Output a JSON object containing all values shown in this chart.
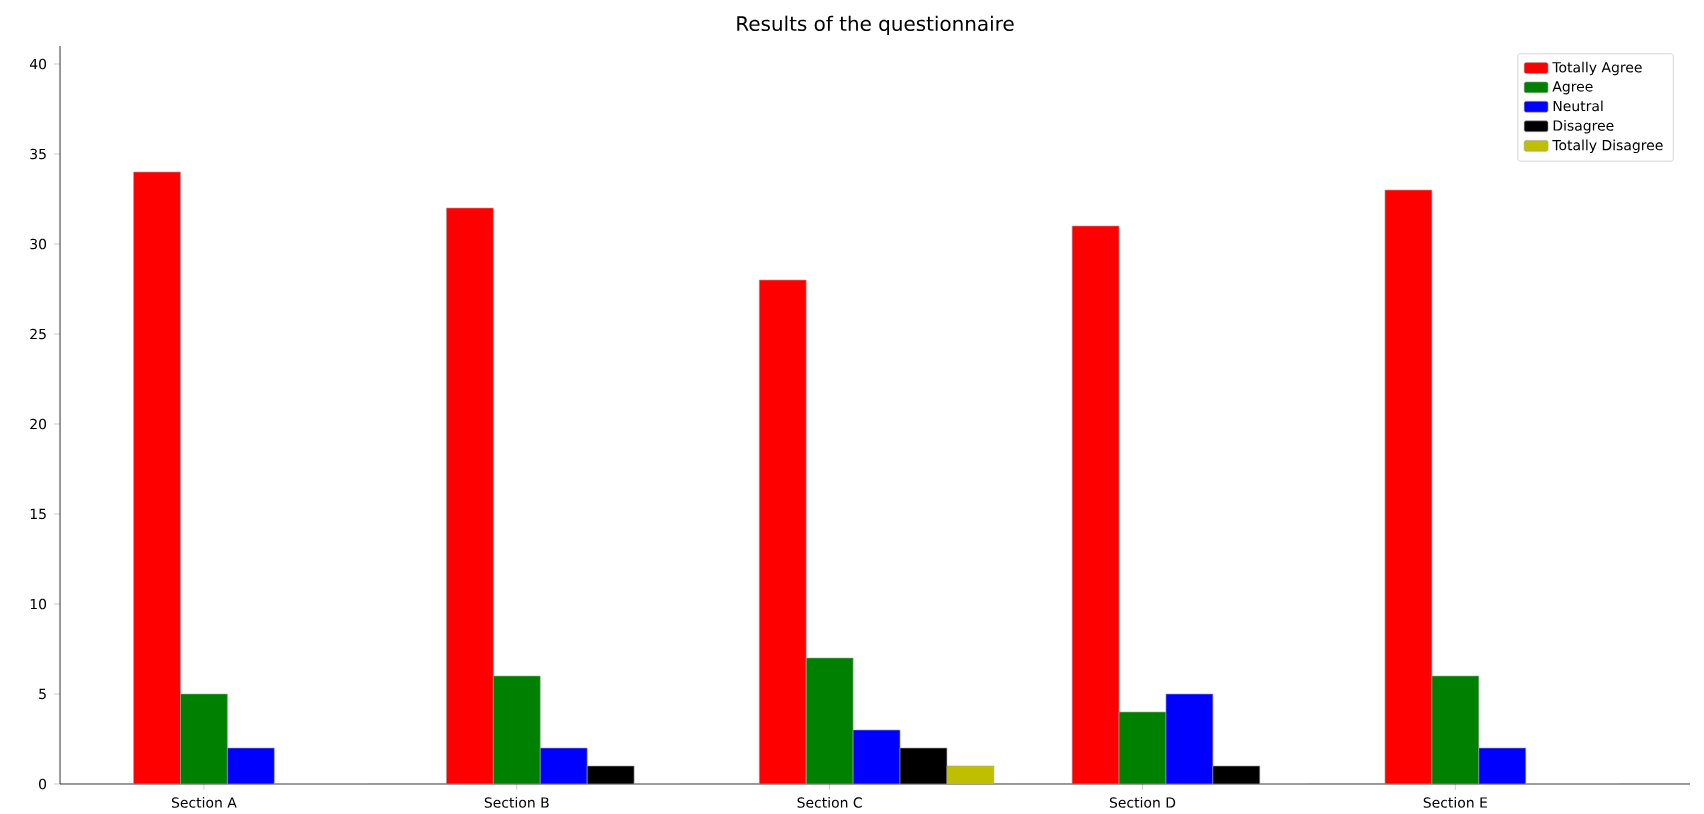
{
  "chart_data": {
    "type": "bar",
    "title": "Results of the questionnaire",
    "categories": [
      "Section A",
      "Section B",
      "Section C",
      "Section D",
      "Section E"
    ],
    "series": [
      {
        "name": "Totally Agree",
        "color": "#ff0000",
        "values": [
          34,
          32,
          28,
          31,
          33
        ]
      },
      {
        "name": "Agree",
        "color": "#008000",
        "values": [
          5,
          6,
          7,
          4,
          6
        ]
      },
      {
        "name": "Neutral",
        "color": "#0000ff",
        "values": [
          2,
          2,
          3,
          5,
          2
        ]
      },
      {
        "name": "Disagree",
        "color": "#000000",
        "values": [
          0,
          1,
          2,
          1,
          0
        ]
      },
      {
        "name": "Totally Disagree",
        "color": "#bfbf00",
        "values": [
          0,
          0,
          1,
          0,
          0
        ]
      }
    ],
    "ylim": [
      0,
      41
    ],
    "yticks": [
      0,
      5,
      10,
      15,
      20,
      25,
      30,
      35,
      40
    ],
    "grid": false,
    "legend": "top right"
  }
}
